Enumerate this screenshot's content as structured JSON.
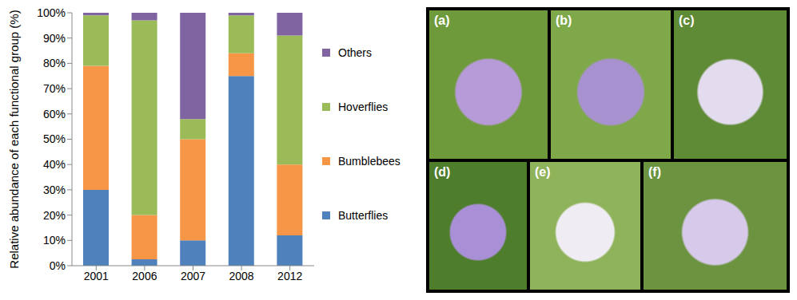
{
  "chart_data": {
    "type": "bar",
    "stacked": true,
    "y_label": "Relative abundance of each functional group (%)",
    "categories": [
      "2001",
      "2006",
      "2007",
      "2008",
      "2012"
    ],
    "series": [
      {
        "name": "Butterflies",
        "color": "#4f81bd",
        "values": [
          30,
          2.5,
          10,
          75,
          12
        ]
      },
      {
        "name": "Bumblebees",
        "color": "#f79646",
        "values": [
          49,
          17.5,
          40,
          9,
          28
        ]
      },
      {
        "name": "Hoverflies",
        "color": "#9bbb59",
        "values": [
          20,
          77,
          8,
          15,
          51
        ]
      },
      {
        "name": "Others",
        "color": "#8064a2",
        "values": [
          1,
          3,
          42,
          1,
          9
        ]
      }
    ],
    "ylim": [
      0,
      100
    ],
    "yticks": [
      {
        "value": 0,
        "label": "0%"
      },
      {
        "value": 10,
        "label": "10%"
      },
      {
        "value": 20,
        "label": "20%"
      },
      {
        "value": 30,
        "label": "30%"
      },
      {
        "value": 40,
        "label": "40%"
      },
      {
        "value": 50,
        "label": "50%"
      },
      {
        "value": 60,
        "label": "60%"
      },
      {
        "value": 70,
        "label": "70%"
      },
      {
        "value": 80,
        "label": "80%"
      },
      {
        "value": 90,
        "label": "90%"
      },
      {
        "value": 100,
        "label": "100%"
      }
    ],
    "grid": false,
    "legend": "right"
  },
  "photo_panels": [
    "(a)",
    "(b)",
    "(c)",
    "(d)",
    "(e)",
    "(f)"
  ]
}
